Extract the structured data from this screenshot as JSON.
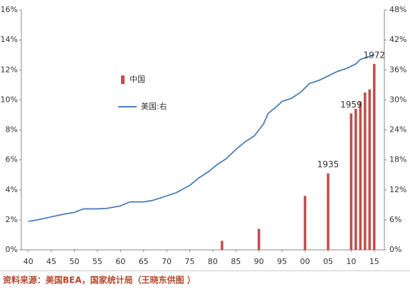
{
  "chart_data": {
    "type": "combo",
    "source": "资料来源：美国BEA，国家统计局（王晓东供图 ）",
    "xlim": [
      1938.5,
      2017.2
    ],
    "xticks": [
      {
        "value": 1940,
        "label": "40"
      },
      {
        "value": 1945,
        "label": "45"
      },
      {
        "value": 1950,
        "label": "50"
      },
      {
        "value": 1955,
        "label": "55"
      },
      {
        "value": 1960,
        "label": "60"
      },
      {
        "value": 1965,
        "label": "65"
      },
      {
        "value": 1970,
        "label": "70"
      },
      {
        "value": 1975,
        "label": "75"
      },
      {
        "value": 1980,
        "label": "80"
      },
      {
        "value": 1985,
        "label": "85"
      },
      {
        "value": 1990,
        "label": "90"
      },
      {
        "value": 1995,
        "label": "95"
      },
      {
        "value": 2000,
        "label": "00"
      },
      {
        "value": 2005,
        "label": "05"
      },
      {
        "value": 2010,
        "label": "10"
      },
      {
        "value": 2015,
        "label": "15"
      }
    ],
    "ylim": [
      0,
      16
    ],
    "yticks": [
      {
        "value": 0,
        "label": "0%"
      },
      {
        "value": 2,
        "label": "2%"
      },
      {
        "value": 4,
        "label": "4%"
      },
      {
        "value": 6,
        "label": "6%"
      },
      {
        "value": 8,
        "label": "8%"
      },
      {
        "value": 10,
        "label": "10%"
      },
      {
        "value": 12,
        "label": "12%"
      },
      {
        "value": 14,
        "label": "14%"
      },
      {
        "value": 16,
        "label": "16%"
      }
    ],
    "y2lim": [
      0,
      48
    ],
    "y2ticks": [
      {
        "value": 0,
        "label": "0%"
      },
      {
        "value": 6,
        "label": "6%"
      },
      {
        "value": 12,
        "label": "12%"
      },
      {
        "value": 18,
        "label": "18%"
      },
      {
        "value": 24,
        "label": "24%"
      },
      {
        "value": 30,
        "label": "30%"
      },
      {
        "value": 36,
        "label": "36%"
      },
      {
        "value": 42,
        "label": "42%"
      },
      {
        "value": 48,
        "label": "48%"
      }
    ],
    "series": [
      {
        "name": "中国",
        "type": "bar",
        "color": "#c0504d",
        "x": [
          1982,
          1990,
          2000,
          2005,
          2010,
          2011,
          2012,
          2013,
          2014,
          2015
        ],
        "values": [
          0.6,
          1.4,
          3.6,
          5.1,
          9.1,
          9.4,
          9.9,
          10.5,
          10.7,
          12.4
        ]
      },
      {
        "name": "美国:右",
        "type": "line",
        "axis": "y2",
        "color": "#4a7ebb",
        "x": [
          1940,
          1942,
          1945,
          1948,
          1950,
          1952,
          1955,
          1957,
          1960,
          1962,
          1965,
          1967,
          1970,
          1972,
          1975,
          1977,
          1979,
          1981,
          1983,
          1985,
          1987,
          1989,
          1990,
          1991,
          1992,
          1994,
          1995,
          1997,
          1999,
          2000,
          2001,
          2003,
          2005,
          2007,
          2009,
          2011,
          2012,
          2013,
          2015
        ],
        "values": [
          5.7,
          6.0,
          6.6,
          7.2,
          7.5,
          8.2,
          8.2,
          8.3,
          8.8,
          9.6,
          9.6,
          9.9,
          10.8,
          11.4,
          12.9,
          14.4,
          15.6,
          17.1,
          18.3,
          20.1,
          21.6,
          22.8,
          24.0,
          25.2,
          27.3,
          28.8,
          29.7,
          30.3,
          31.5,
          32.4,
          33.3,
          33.9,
          34.8,
          35.7,
          36.3,
          37.2,
          38.1,
          38.4,
          39.0
        ]
      }
    ],
    "annotations": [
      {
        "text": "1935",
        "x": 2005
      },
      {
        "text": "1959",
        "x": 2010
      },
      {
        "text": "1972",
        "x": 2015
      }
    ]
  }
}
